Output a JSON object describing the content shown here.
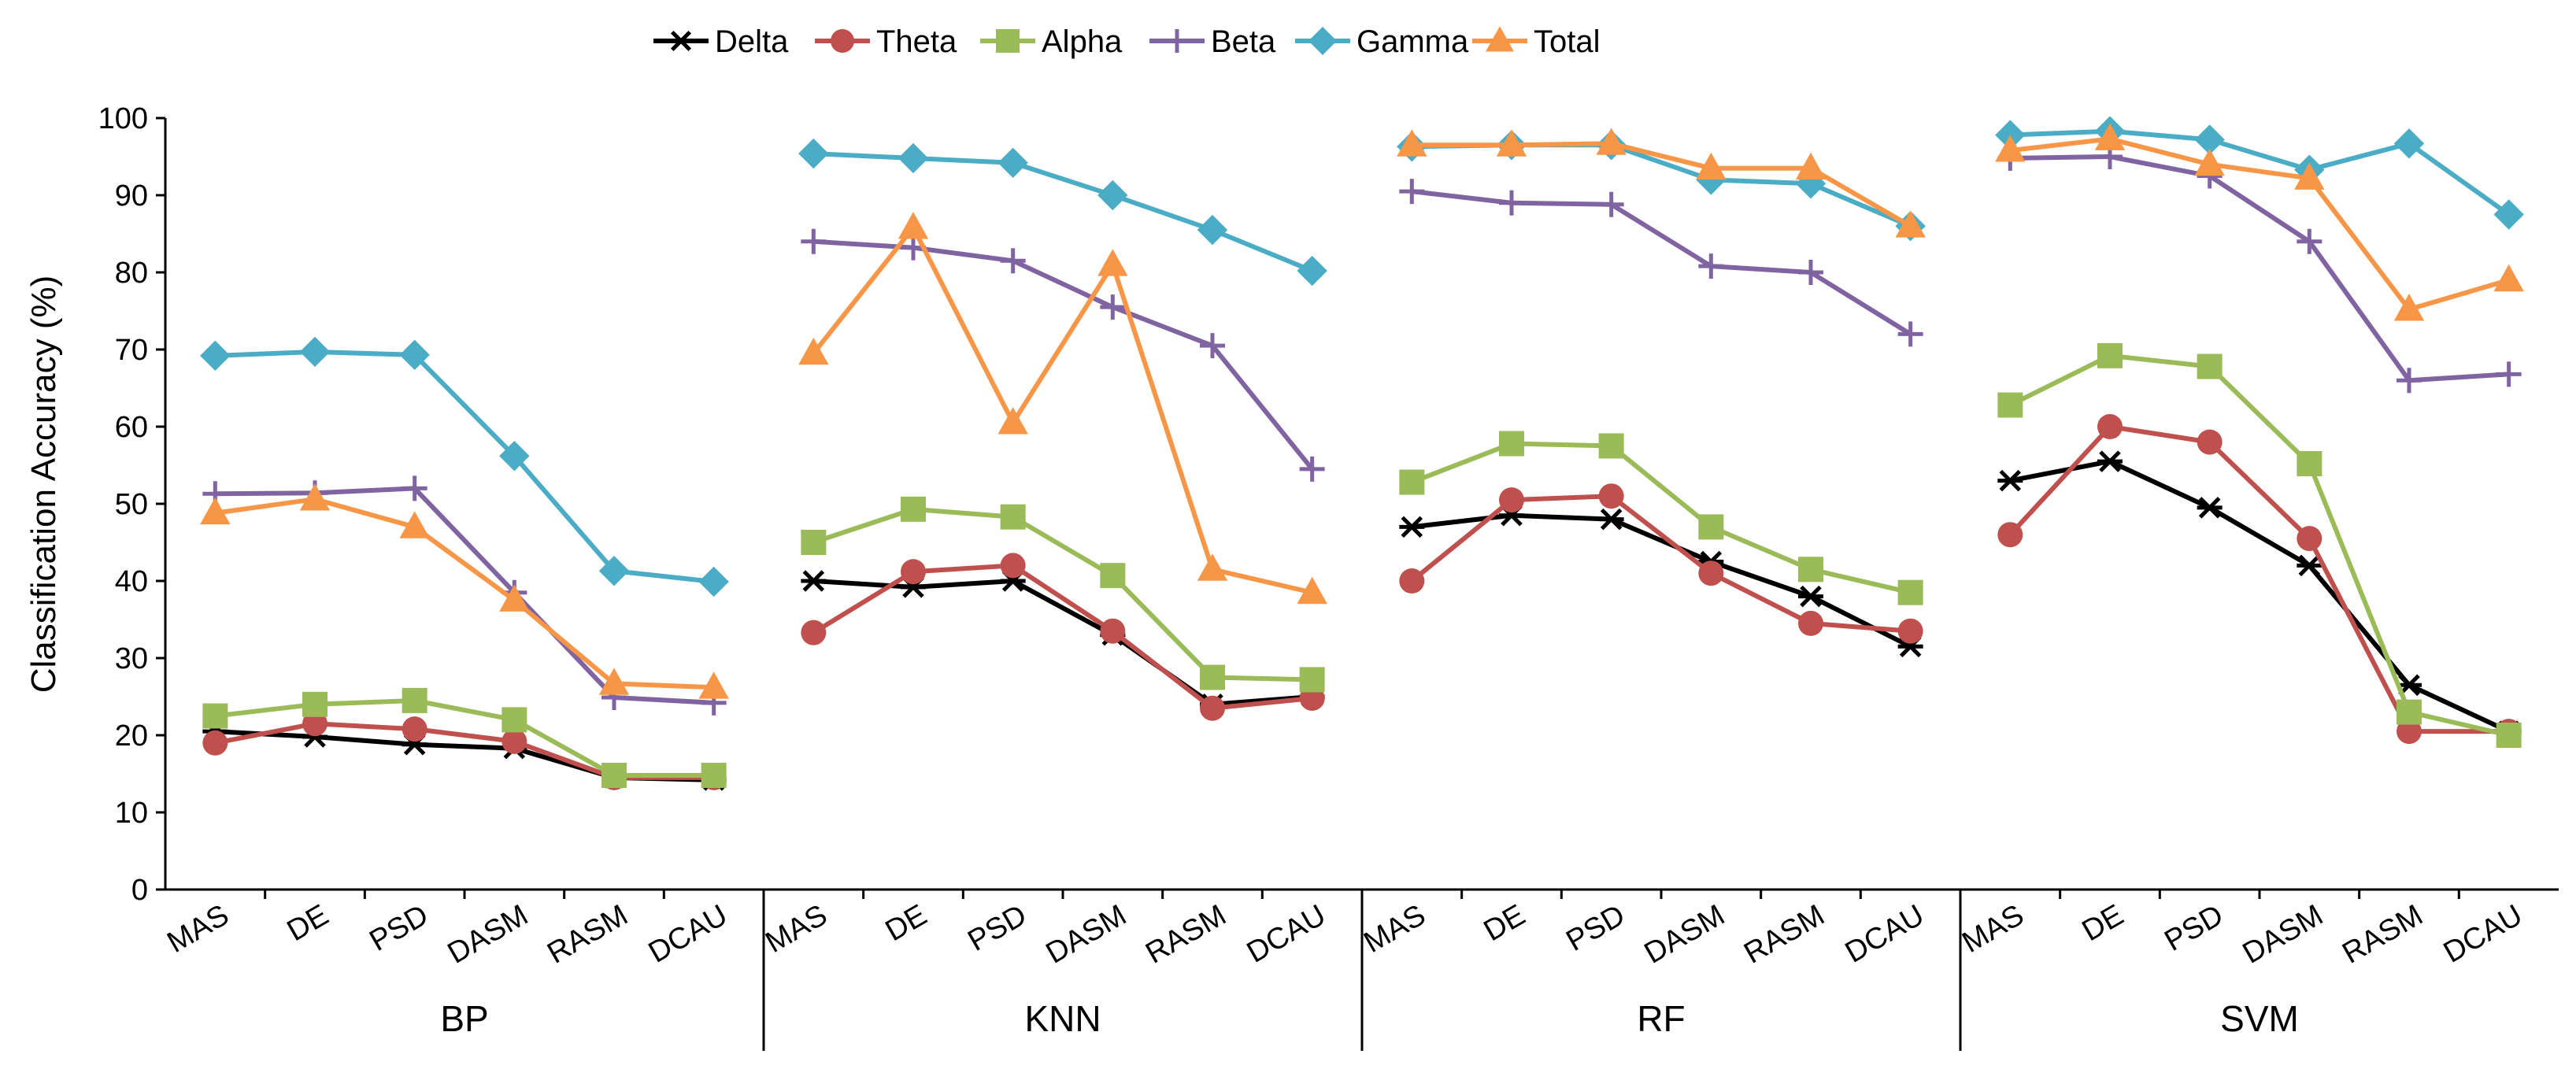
{
  "chart_data": {
    "type": "line",
    "title": "",
    "xlabel": "",
    "ylabel": "Classification  Accuracy  (%)",
    "ylim": [
      0,
      100
    ],
    "yticks": [
      0,
      10,
      20,
      30,
      40,
      50,
      60,
      70,
      80,
      90,
      100
    ],
    "groups": [
      "BP",
      "KNN",
      "RF",
      "SVM"
    ],
    "categories": [
      "MAS",
      "DE",
      "PSD",
      "DASM",
      "RASM",
      "DCAU"
    ],
    "legend_position": "top",
    "series": [
      {
        "name": "Delta",
        "color": "#000000",
        "marker": "asterisk",
        "values": [
          [
            20.5,
            19.8,
            18.8,
            18.3,
            14.5,
            14.2
          ],
          [
            40.0,
            39.2,
            40.0,
            33.0,
            24.0,
            25.0
          ],
          [
            47.0,
            48.5,
            48.0,
            42.5,
            38.0,
            31.5
          ],
          [
            53.0,
            55.5,
            49.5,
            42.0,
            26.5,
            20.5
          ]
        ]
      },
      {
        "name": "Theta",
        "color": "#C0504D",
        "marker": "circle",
        "values": [
          [
            19.0,
            21.5,
            20.8,
            19.2,
            14.5,
            14.5
          ],
          [
            33.3,
            41.2,
            42.0,
            33.5,
            23.5,
            24.8
          ],
          [
            40.0,
            50.5,
            51.0,
            41.0,
            34.5,
            33.5
          ],
          [
            46.0,
            60.0,
            58.0,
            45.5,
            20.5,
            20.5
          ]
        ]
      },
      {
        "name": "Alpha",
        "color": "#9BBB59",
        "marker": "square",
        "values": [
          [
            22.5,
            24.0,
            24.5,
            22.0,
            14.8,
            14.8
          ],
          [
            45.0,
            49.3,
            48.3,
            40.7,
            27.5,
            27.2
          ],
          [
            52.8,
            57.8,
            57.5,
            47.0,
            41.5,
            38.5
          ],
          [
            62.8,
            69.2,
            67.8,
            55.2,
            23.0,
            20.0
          ]
        ]
      },
      {
        "name": "Beta",
        "color": "#8064A2",
        "marker": "plus",
        "values": [
          [
            51.3,
            51.4,
            52.0,
            38.5,
            24.9,
            24.2
          ],
          [
            84.0,
            83.2,
            81.5,
            75.5,
            70.5,
            54.5
          ],
          [
            90.5,
            89.0,
            88.8,
            80.8,
            80.0,
            72.0
          ],
          [
            94.8,
            95.0,
            92.5,
            84.0,
            66.0,
            66.8
          ]
        ]
      },
      {
        "name": "Gamma",
        "color": "#4BACC6",
        "marker": "diamond",
        "values": [
          [
            69.2,
            69.7,
            69.3,
            56.2,
            41.3,
            39.9
          ],
          [
            95.4,
            94.8,
            94.2,
            90.0,
            85.5,
            80.2
          ],
          [
            96.3,
            96.5,
            96.5,
            92.0,
            91.5,
            86.0
          ],
          [
            97.8,
            98.3,
            97.2,
            93.3,
            96.7,
            87.5
          ]
        ]
      },
      {
        "name": "Total",
        "color": "#F79646",
        "marker": "triangle",
        "values": [
          [
            48.8,
            50.6,
            47.0,
            37.5,
            26.7,
            26.2
          ],
          [
            69.5,
            85.8,
            60.5,
            81.0,
            41.5,
            38.5
          ],
          [
            96.5,
            96.5,
            96.7,
            93.5,
            93.5,
            86.0
          ],
          [
            95.8,
            97.3,
            94.0,
            92.2,
            75.2,
            79.0
          ]
        ]
      }
    ]
  }
}
